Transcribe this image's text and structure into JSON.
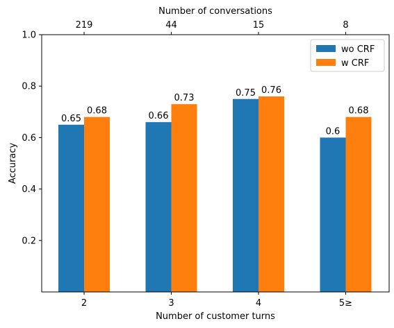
{
  "chart_data": {
    "type": "bar",
    "categories": [
      "2",
      "3",
      "4",
      "5≥"
    ],
    "top_categories": [
      "219",
      "44",
      "15",
      "8"
    ],
    "series": [
      {
        "name": "wo CRF",
        "values": [
          0.65,
          0.66,
          0.75,
          0.6
        ],
        "labels": [
          "0.65",
          "0.66",
          "0.75",
          "0.6"
        ]
      },
      {
        "name": "w CRF",
        "values": [
          0.68,
          0.73,
          0.76,
          0.68
        ],
        "labels": [
          "0.68",
          "0.73",
          "0.76",
          "0.68"
        ]
      }
    ],
    "xlabel": "Number of customer turns",
    "top_xlabel": "Number of conversations",
    "ylabel": "Accuracy",
    "ylim": [
      0,
      1.0
    ],
    "yticks": [
      0.2,
      0.4,
      0.6,
      0.8,
      1.0
    ],
    "ytick_labels": [
      "0.2",
      "0.4",
      "0.6",
      "0.8",
      "1.0"
    ],
    "legend_placement": "top-right",
    "grid": false
  },
  "colors": {
    "wo_crf": "#1f77b4",
    "w_crf": "#ff7f0e"
  }
}
